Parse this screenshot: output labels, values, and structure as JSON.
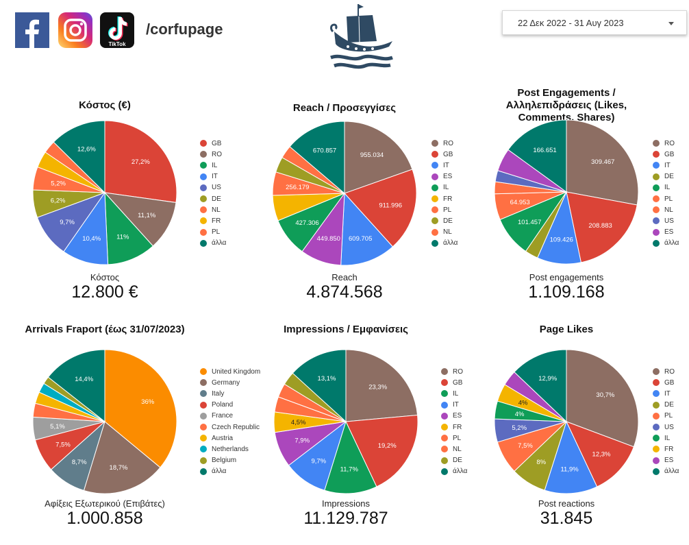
{
  "header": {
    "page_handle": "/corfupage",
    "tiktok_text": "TikTok",
    "date_range": "22 Δεκ 2022 - 31 Αυγ 2023"
  },
  "colors": {
    "brown": "#8D6E63",
    "red": "#DB4437",
    "green": "#0F9D58",
    "blue": "#4285F4",
    "indigo": "#5C6BC0",
    "olive": "#9E9D24",
    "orange": "#FF7043",
    "amber": "#F4B400",
    "purple": "#AB47BC",
    "teal": "#00796B",
    "grey": "#9E9E9E",
    "slate": "#607D8B",
    "cyan": "#00ACC1",
    "uk_orange": "#FB8C00"
  },
  "chart_data": [
    {
      "type": "pie",
      "title": "Κόστος (€)",
      "metric_label": "Κόστος",
      "metric_value": "12.800 €",
      "legend": [
        "GB",
        "RO",
        "IL",
        "IT",
        "US",
        "DE",
        "NL",
        "FR",
        "PL",
        "άλλα"
      ],
      "slices": [
        {
          "label": "GB",
          "value": 27.2,
          "display": "27,2%",
          "color": "#DB4437"
        },
        {
          "label": "RO",
          "value": 11.1,
          "display": "11,1%",
          "color": "#8D6E63"
        },
        {
          "label": "IL",
          "value": 11.0,
          "display": "11%",
          "color": "#0F9D58"
        },
        {
          "label": "IT",
          "value": 10.4,
          "display": "10,4%",
          "color": "#4285F4"
        },
        {
          "label": "US",
          "value": 9.7,
          "display": "9,7%",
          "color": "#5C6BC0"
        },
        {
          "label": "DE",
          "value": 6.2,
          "display": "6,2%",
          "color": "#9E9D24"
        },
        {
          "label": "NL",
          "value": 5.2,
          "display": "5,2%",
          "color": "#FF7043"
        },
        {
          "label": "FR",
          "value": 3.7,
          "display": "",
          "color": "#F4B400"
        },
        {
          "label": "PL",
          "value": 2.9,
          "display": "",
          "color": "#FF7043"
        },
        {
          "label": "άλλα",
          "value": 12.6,
          "display": "12,6%",
          "color": "#00796B"
        }
      ]
    },
    {
      "type": "pie",
      "title": "Reach / Προσεγγίσες",
      "metric_label": "Reach",
      "metric_value": "4.874.568",
      "legend": [
        "RO",
        "GB",
        "IT",
        "ES",
        "IL",
        "FR",
        "PL",
        "DE",
        "NL",
        "άλλα"
      ],
      "slices": [
        {
          "label": "RO",
          "value": 955034,
          "display": "955.034",
          "color": "#8D6E63"
        },
        {
          "label": "GB",
          "value": 911996,
          "display": "911.996",
          "color": "#DB4437"
        },
        {
          "label": "IT",
          "value": 609705,
          "display": "609.705",
          "color": "#4285F4"
        },
        {
          "label": "ES",
          "value": 449850,
          "display": "449.850",
          "color": "#AB47BC"
        },
        {
          "label": "IL",
          "value": 427306,
          "display": "427.306",
          "color": "#0F9D58"
        },
        {
          "label": "FR",
          "value": 280000,
          "display": "",
          "color": "#F4B400"
        },
        {
          "label": "PL",
          "value": 256179,
          "display": "256.179",
          "color": "#FF7043"
        },
        {
          "label": "DE",
          "value": 170000,
          "display": "",
          "color": "#9E9D24"
        },
        {
          "label": "NL",
          "value": 143641,
          "display": "",
          "color": "#FF7043"
        },
        {
          "label": "άλλα",
          "value": 670857,
          "display": "670.857",
          "color": "#00796B"
        }
      ]
    },
    {
      "type": "pie",
      "title": "Post Engagements / Αλληλεπιδράσεις (Likes, Comments, Shares)",
      "metric_label": "Post engagements",
      "metric_value": "1.109.168",
      "legend": [
        "RO",
        "GB",
        "IT",
        "DE",
        "IL",
        "PL",
        "NL",
        "US",
        "ES",
        "άλλα"
      ],
      "slices": [
        {
          "label": "RO",
          "value": 309467,
          "display": "309.467",
          "color": "#8D6E63"
        },
        {
          "label": "GB",
          "value": 208883,
          "display": "208.883",
          "color": "#DB4437"
        },
        {
          "label": "IT",
          "value": 109426,
          "display": "109.426",
          "color": "#4285F4"
        },
        {
          "label": "DE",
          "value": 33000,
          "display": "",
          "color": "#9E9D24"
        },
        {
          "label": "IL",
          "value": 101457,
          "display": "101.457",
          "color": "#0F9D58"
        },
        {
          "label": "PL",
          "value": 64953,
          "display": "64.953",
          "color": "#FF7043"
        },
        {
          "label": "NL",
          "value": 30000,
          "display": "",
          "color": "#FF7043"
        },
        {
          "label": "US",
          "value": 28000,
          "display": "",
          "color": "#5C6BC0"
        },
        {
          "label": "ES",
          "value": 57331,
          "display": "",
          "color": "#AB47BC"
        },
        {
          "label": "άλλα",
          "value": 166651,
          "display": "166.651",
          "color": "#00796B"
        }
      ]
    },
    {
      "type": "pie",
      "title": "Arrivals Fraport (έως 31/07/2023)",
      "metric_label": "Αφίξεις Εξωτερικού (Επιβάτες)",
      "metric_value": "1.000.858",
      "legend": [
        "United Kingdom",
        "Germany",
        "Italy",
        "Poland",
        "France",
        "Czech Republic",
        "Austria",
        "Netherlands",
        "Belgium",
        "άλλα"
      ],
      "slices": [
        {
          "label": "United Kingdom",
          "value": 36.0,
          "display": "36%",
          "color": "#FB8C00"
        },
        {
          "label": "Germany",
          "value": 18.7,
          "display": "18,7%",
          "color": "#8D6E63"
        },
        {
          "label": "Italy",
          "value": 8.7,
          "display": "8,7%",
          "color": "#607D8B"
        },
        {
          "label": "Poland",
          "value": 7.5,
          "display": "7,5%",
          "color": "#DB4437"
        },
        {
          "label": "France",
          "value": 5.1,
          "display": "5,1%",
          "color": "#9E9E9E"
        },
        {
          "label": "Czech Republic",
          "value": 3.1,
          "display": "",
          "color": "#FF7043"
        },
        {
          "label": "Austria",
          "value": 2.6,
          "display": "",
          "color": "#F4B400"
        },
        {
          "label": "Netherlands",
          "value": 2.2,
          "display": "",
          "color": "#00ACC1"
        },
        {
          "label": "Belgium",
          "value": 1.7,
          "display": "",
          "color": "#9E9D24"
        },
        {
          "label": "άλλα",
          "value": 14.4,
          "display": "14,4%",
          "color": "#00796B"
        }
      ]
    },
    {
      "type": "pie",
      "title": "Impressions / Εμφανίσεις",
      "metric_label": "Impressions",
      "metric_value": "11.129.787",
      "legend": [
        "RO",
        "GB",
        "IL",
        "IT",
        "ES",
        "FR",
        "PL",
        "NL",
        "DE",
        "άλλα"
      ],
      "slices": [
        {
          "label": "RO",
          "value": 23.3,
          "display": "23,3%",
          "color": "#8D6E63"
        },
        {
          "label": "GB",
          "value": 19.2,
          "display": "19,2%",
          "color": "#DB4437"
        },
        {
          "label": "IL",
          "value": 11.7,
          "display": "11,7%",
          "color": "#0F9D58"
        },
        {
          "label": "IT",
          "value": 9.7,
          "display": "9,7%",
          "color": "#4285F4"
        },
        {
          "label": "ES",
          "value": 7.9,
          "display": "7,9%",
          "color": "#AB47BC"
        },
        {
          "label": "FR",
          "value": 4.5,
          "display": "4,5%",
          "color": "#F4B400"
        },
        {
          "label": "PL",
          "value": 3.4,
          "display": "",
          "color": "#FF7043"
        },
        {
          "label": "NL",
          "value": 3.1,
          "display": "",
          "color": "#FF7043"
        },
        {
          "label": "DE",
          "value": 3.0,
          "display": "",
          "color": "#9E9D24"
        },
        {
          "label": "άλλα",
          "value": 13.1,
          "display": "13,1%",
          "color": "#00796B"
        }
      ]
    },
    {
      "type": "pie",
      "title": "Page Likes",
      "metric_label": "Post reactions",
      "metric_value": "31.845",
      "legend": [
        "RO",
        "GB",
        "IT",
        "DE",
        "PL",
        "US",
        "IL",
        "FR",
        "ES",
        "άλλα"
      ],
      "slices": [
        {
          "label": "RO",
          "value": 30.7,
          "display": "30,7%",
          "color": "#8D6E63"
        },
        {
          "label": "GB",
          "value": 12.3,
          "display": "12,3%",
          "color": "#DB4437"
        },
        {
          "label": "IT",
          "value": 11.9,
          "display": "11,9%",
          "color": "#4285F4"
        },
        {
          "label": "DE",
          "value": 8.0,
          "display": "8%",
          "color": "#9E9D24"
        },
        {
          "label": "PL",
          "value": 7.5,
          "display": "7,5%",
          "color": "#FF7043"
        },
        {
          "label": "US",
          "value": 5.2,
          "display": "5,2%",
          "color": "#5C6BC0"
        },
        {
          "label": "IL",
          "value": 4.0,
          "display": "4%",
          "color": "#0F9D58"
        },
        {
          "label": "FR",
          "value": 4.0,
          "display": "4%",
          "color": "#F4B400"
        },
        {
          "label": "ES",
          "value": 3.5,
          "display": "",
          "color": "#AB47BC"
        },
        {
          "label": "άλλα",
          "value": 12.9,
          "display": "12,9%",
          "color": "#00796B"
        }
      ]
    }
  ]
}
